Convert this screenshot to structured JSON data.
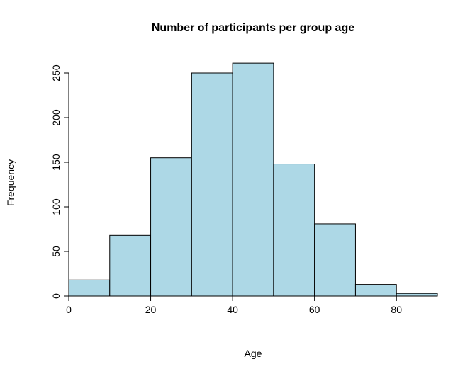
{
  "chart_data": {
    "type": "bar",
    "subtype": "histogram",
    "title": "Number of participants per group age",
    "xlabel": "Age",
    "ylabel": "Frequency",
    "bin_edges": [
      0,
      10,
      20,
      30,
      40,
      50,
      60,
      70,
      80,
      90
    ],
    "counts": [
      18,
      68,
      155,
      250,
      261,
      148,
      81,
      13,
      3
    ],
    "x_ticks": [
      0,
      20,
      40,
      60,
      80
    ],
    "y_ticks": [
      0,
      50,
      100,
      150,
      200,
      250
    ],
    "xlim": [
      0,
      90
    ],
    "ylim": [
      0,
      261
    ],
    "bar_fill": "#ADD8E6",
    "bar_stroke": "#000000",
    "background": "#FFFFFF",
    "grid": "off",
    "legend": "none"
  }
}
